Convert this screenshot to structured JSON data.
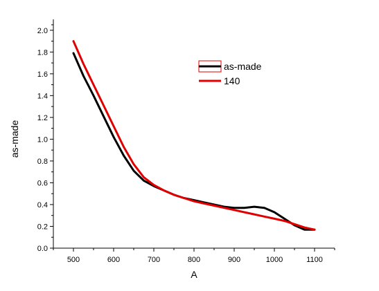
{
  "chart_data": {
    "type": "line",
    "xlabel": "A",
    "ylabel": "as-made",
    "xlim": [
      450,
      1150
    ],
    "ylim": [
      0,
      2.1
    ],
    "x_ticks": [
      500,
      600,
      700,
      800,
      900,
      1000,
      1100
    ],
    "y_ticks": [
      0.0,
      0.2,
      0.4,
      0.6,
      0.8,
      1.0,
      1.2,
      1.4,
      1.6,
      1.8,
      2.0
    ],
    "y_tick_labels": [
      "0.0",
      "0.2",
      "0.4",
      "0.6",
      "0.8",
      "1.0",
      "1.2",
      "1.4",
      "1.6",
      "1.8",
      "2.0"
    ],
    "grid": false,
    "legend_position": "upper-right-center",
    "series": [
      {
        "name": "as-made",
        "color": "#000000",
        "x": [
          500,
          525,
          550,
          575,
          600,
          625,
          650,
          675,
          700,
          725,
          750,
          775,
          800,
          825,
          850,
          875,
          900,
          925,
          950,
          975,
          1000,
          1025,
          1050,
          1075,
          1100
        ],
        "y": [
          1.79,
          1.58,
          1.4,
          1.21,
          1.02,
          0.85,
          0.71,
          0.62,
          0.57,
          0.53,
          0.49,
          0.46,
          0.44,
          0.42,
          0.4,
          0.38,
          0.37,
          0.37,
          0.38,
          0.37,
          0.33,
          0.27,
          0.21,
          0.17,
          0.17
        ]
      },
      {
        "name": "140",
        "color": "#e00000",
        "x": [
          500,
          525,
          550,
          575,
          600,
          625,
          650,
          675,
          700,
          725,
          750,
          775,
          800,
          825,
          850,
          875,
          900,
          925,
          950,
          975,
          1000,
          1025,
          1050,
          1075,
          1100
        ],
        "y": [
          1.9,
          1.69,
          1.5,
          1.31,
          1.12,
          0.93,
          0.77,
          0.65,
          0.58,
          0.53,
          0.49,
          0.46,
          0.43,
          0.41,
          0.39,
          0.37,
          0.35,
          0.33,
          0.31,
          0.29,
          0.27,
          0.25,
          0.22,
          0.19,
          0.17
        ]
      }
    ]
  }
}
